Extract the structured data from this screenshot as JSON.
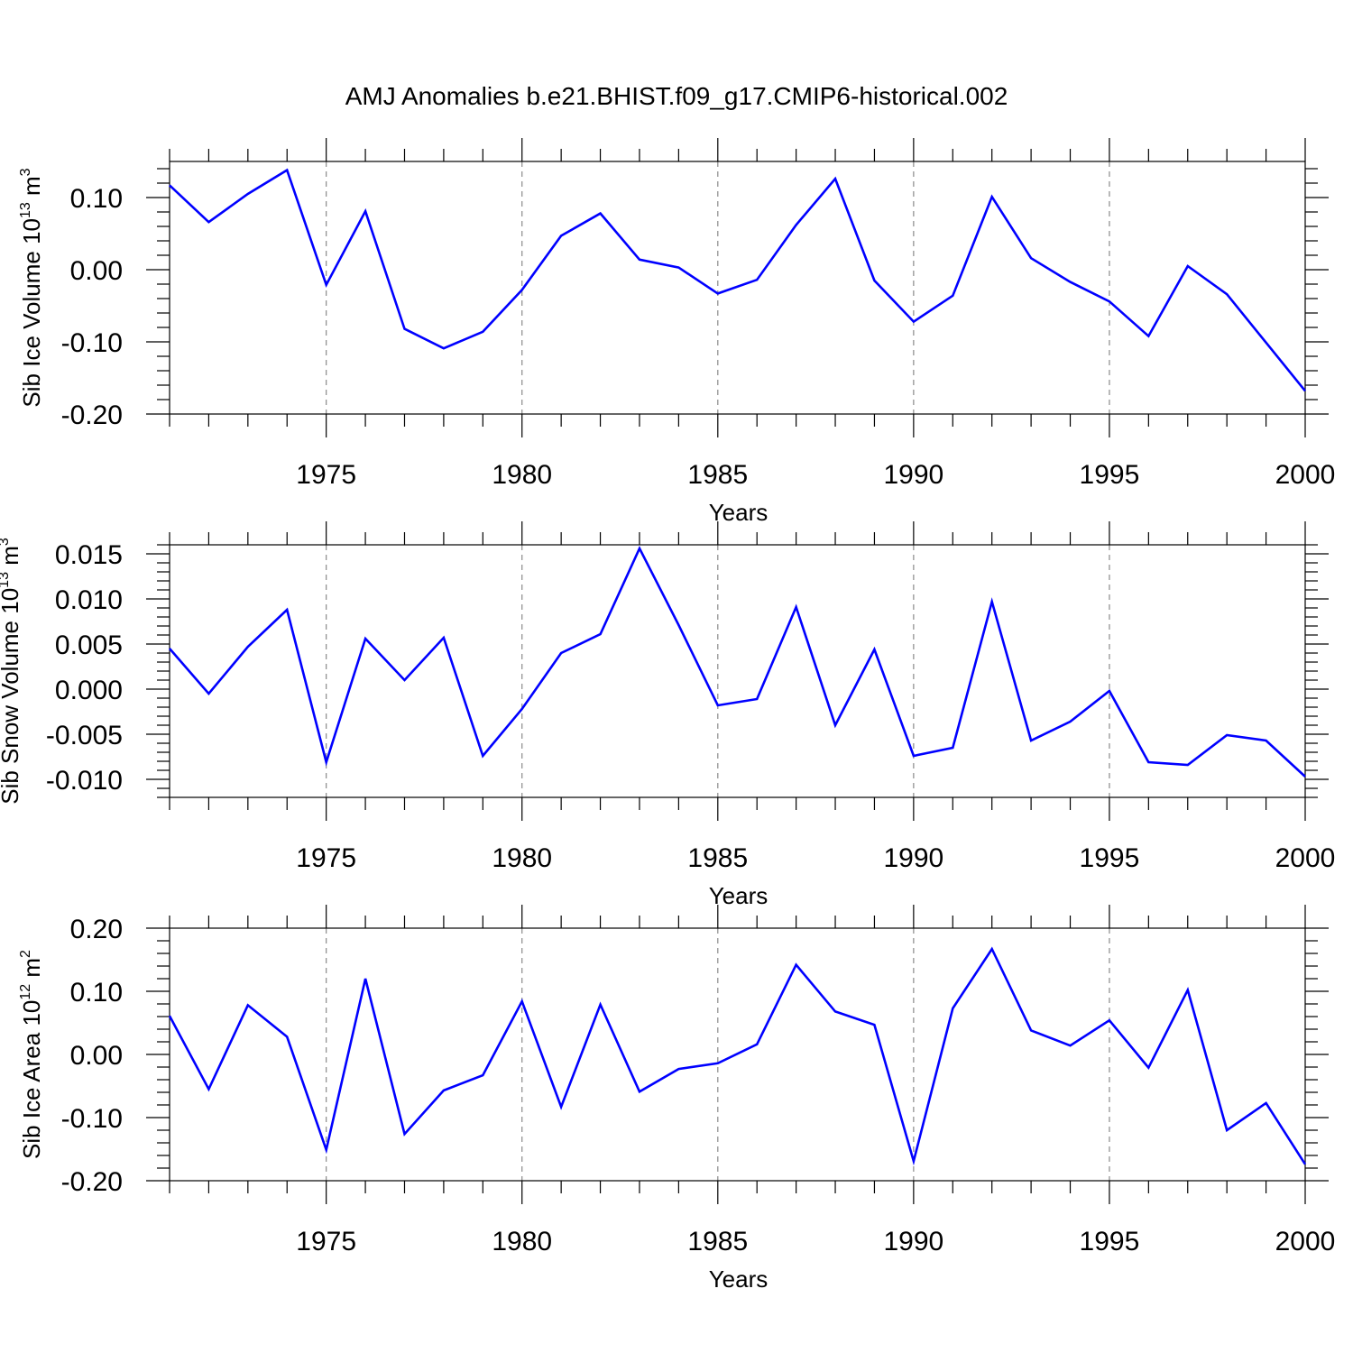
{
  "figure": {
    "title": "AMJ Anomalies b.e21.BHIST.f09_g17.CMIP6-historical.002"
  },
  "chart_data": [
    {
      "type": "line",
      "xlabel": "Years",
      "ylabel": "Sib Ice Volume 10",
      "ylabel_sup": "13",
      "ylabel_unit": " m",
      "ylabel_unit_sup": "3",
      "xlim": [
        1971,
        2000
      ],
      "ylim": [
        -0.2,
        0.15
      ],
      "xticks": [
        1975,
        1980,
        1985,
        1990,
        1995,
        2000
      ],
      "yticks": [
        -0.2,
        -0.1,
        0.0,
        0.1
      ],
      "ytick_labels": [
        "-0.20",
        "-0.10",
        "0.00",
        "0.10"
      ],
      "y_minor_step": 0.02,
      "grid": "vertical dashed at major x ticks",
      "color": "#0000ff",
      "x": [
        1971,
        1972,
        1973,
        1974,
        1975,
        1976,
        1977,
        1978,
        1979,
        1980,
        1981,
        1982,
        1983,
        1984,
        1985,
        1986,
        1987,
        1988,
        1989,
        1990,
        1991,
        1992,
        1993,
        1994,
        1995,
        1996,
        1997,
        1998,
        1999,
        2000
      ],
      "values": [
        0.117,
        0.066,
        0.105,
        0.138,
        -0.021,
        0.081,
        -0.082,
        -0.109,
        -0.086,
        -0.028,
        0.047,
        0.078,
        0.014,
        0.003,
        -0.033,
        -0.014,
        0.062,
        0.126,
        -0.015,
        -0.072,
        -0.036,
        0.101,
        0.016,
        -0.017,
        -0.044,
        -0.092,
        0.005,
        -0.034,
        -0.101,
        -0.168
      ]
    },
    {
      "type": "line",
      "xlabel": "Years",
      "ylabel": "Sib Snow Volume 10",
      "ylabel_sup": "13",
      "ylabel_unit": " m",
      "ylabel_unit_sup": "3",
      "xlim": [
        1971,
        2000
      ],
      "ylim": [
        -0.012,
        0.016
      ],
      "xticks": [
        1975,
        1980,
        1985,
        1990,
        1995,
        2000
      ],
      "yticks": [
        -0.01,
        -0.005,
        0.0,
        0.005,
        0.01,
        0.015
      ],
      "ytick_labels": [
        "-0.010",
        "-0.005",
        "0.000",
        "0.005",
        "0.010",
        "0.015"
      ],
      "y_minor_step": 0.001,
      "grid": "vertical dashed at major x ticks",
      "color": "#0000ff",
      "x": [
        1971,
        1972,
        1973,
        1974,
        1975,
        1976,
        1977,
        1978,
        1979,
        1980,
        1981,
        1982,
        1983,
        1984,
        1985,
        1986,
        1987,
        1988,
        1989,
        1990,
        1991,
        1992,
        1993,
        1994,
        1995,
        1996,
        1997,
        1998,
        1999,
        2000
      ],
      "values": [
        0.0045,
        -0.0005,
        0.0047,
        0.0088,
        -0.0081,
        0.0056,
        0.001,
        0.0057,
        -0.0074,
        -0.0022,
        0.004,
        0.0061,
        0.0156,
        0.0071,
        -0.0018,
        -0.0011,
        0.0091,
        -0.004,
        0.0044,
        -0.0074,
        -0.0065,
        0.0097,
        -0.0057,
        -0.0036,
        -0.0002,
        -0.0081,
        -0.0084,
        -0.0051,
        -0.0057,
        -0.0097
      ]
    },
    {
      "type": "line",
      "xlabel": "Years",
      "ylabel": "Sib Ice Area 10",
      "ylabel_sup": "12",
      "ylabel_unit": " m",
      "ylabel_unit_sup": "2",
      "xlim": [
        1971,
        2000
      ],
      "ylim": [
        -0.2,
        0.2
      ],
      "xticks": [
        1975,
        1980,
        1985,
        1990,
        1995,
        2000
      ],
      "yticks": [
        -0.2,
        -0.1,
        0.0,
        0.1,
        0.2
      ],
      "ytick_labels": [
        "-0.20",
        "-0.10",
        "0.00",
        "0.10",
        "0.20"
      ],
      "y_minor_step": 0.02,
      "grid": "vertical dashed at major x ticks",
      "color": "#0000ff",
      "x": [
        1971,
        1972,
        1973,
        1974,
        1975,
        1976,
        1977,
        1978,
        1979,
        1980,
        1981,
        1982,
        1983,
        1984,
        1985,
        1986,
        1987,
        1988,
        1989,
        1990,
        1991,
        1992,
        1993,
        1994,
        1995,
        1996,
        1997,
        1998,
        1999,
        2000
      ],
      "values": [
        0.061,
        -0.055,
        0.078,
        0.028,
        -0.151,
        0.12,
        -0.126,
        -0.057,
        -0.033,
        0.084,
        -0.083,
        0.079,
        -0.059,
        -0.023,
        -0.014,
        0.016,
        0.142,
        0.068,
        0.047,
        -0.169,
        0.073,
        0.167,
        0.038,
        0.014,
        0.054,
        -0.021,
        0.102,
        -0.12,
        -0.077,
        -0.174
      ]
    }
  ]
}
